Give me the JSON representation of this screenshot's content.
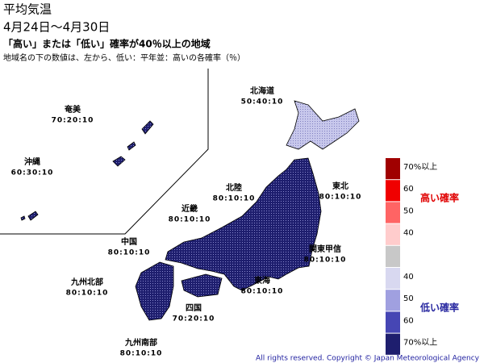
{
  "header": {
    "title": "平均気温",
    "period": "4月24日～4月30日",
    "subtitle": "「高い」または「低い」確率が40％以上の地域",
    "note": "地域名の下の数値は、左から、低い：平年並：高いの各確率（％）"
  },
  "regions": [
    {
      "name": "北海道",
      "probs": "50:40:10"
    },
    {
      "name": "奄美",
      "probs": "70:20:10"
    },
    {
      "name": "沖縄",
      "probs": "60:30:10"
    },
    {
      "name": "北陸",
      "probs": "80:10:10"
    },
    {
      "name": "東北",
      "probs": "80:10:10"
    },
    {
      "name": "近畿",
      "probs": "80:10:10"
    },
    {
      "name": "中国",
      "probs": "80:10:10"
    },
    {
      "name": "関東甲信",
      "probs": "80:10:10"
    },
    {
      "name": "九州北部",
      "probs": "80:10:10"
    },
    {
      "name": "東海",
      "probs": "80:10:10"
    },
    {
      "name": "四国",
      "probs": "70:20:10"
    },
    {
      "name": "九州南部",
      "probs": "80:10:10"
    }
  ],
  "legend": {
    "high_title": "高い確率",
    "low_title": "低い確率",
    "items": [
      {
        "label": "70%以上",
        "color": "#a00000"
      },
      {
        "label": "60",
        "color": "#f00000"
      },
      {
        "label": "50",
        "color": "#ff6464"
      },
      {
        "label": "40",
        "color": "#ffcccc"
      },
      {
        "label": null,
        "color": "#c8c8c8"
      },
      {
        "label": "40",
        "color": "#d8d8f0"
      },
      {
        "label": "50",
        "color": "#a0a0e0"
      },
      {
        "label": "60",
        "color": "#4646b4"
      },
      {
        "label": "70%以上",
        "color": "#1e1e6e"
      }
    ]
  },
  "copyright": "All rights reserved. Copyright © Japan Meteorological Agency"
}
